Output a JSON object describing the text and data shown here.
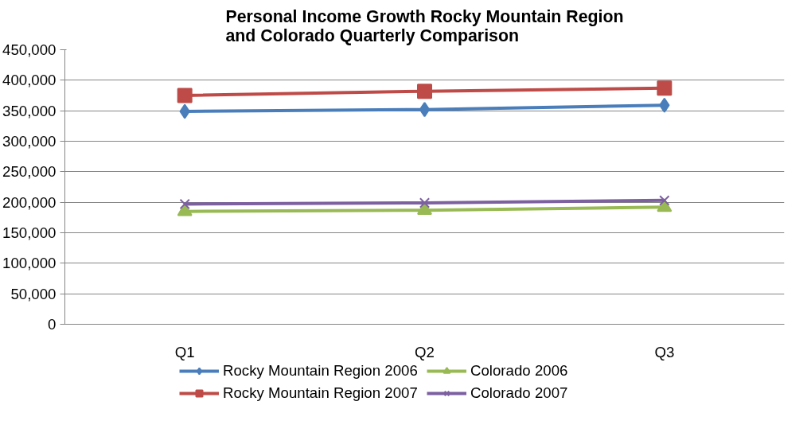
{
  "chart_data": {
    "type": "line",
    "title": "Personal Income Growth Rocky Mountain Region\nand Colorado Quarterly Comparison",
    "categories": [
      "Q1",
      "Q2",
      "Q3"
    ],
    "series": [
      {
        "name": "Rocky Mountain Region 2006",
        "color": "#4a7ebb",
        "marker": "diamond",
        "values": [
          349000,
          352000,
          359000
        ]
      },
      {
        "name": "Rocky Mountain Region 2007",
        "color": "#be4b48",
        "marker": "square",
        "values": [
          375000,
          382000,
          387000
        ]
      },
      {
        "name": "Colorado 2006",
        "color": "#98b954",
        "marker": "triangle",
        "values": [
          185000,
          187000,
          192000
        ]
      },
      {
        "name": "Colorado 2007",
        "color": "#7d60a0",
        "marker": "cross",
        "values": [
          197000,
          199000,
          203000
        ]
      }
    ],
    "ylim": [
      0,
      450000
    ],
    "yticks": [
      0,
      {
        "value": 50000,
        "label": "50,000"
      },
      {
        "value": 100000,
        "label": "100,000"
      },
      {
        "value": 150000,
        "label": "150,000"
      },
      {
        "value": 200000,
        "label": "200,000"
      },
      {
        "value": 250000,
        "label": "250,000"
      },
      {
        "value": 300000,
        "label": "300,000"
      },
      {
        "value": 350000,
        "label": "350,000"
      },
      {
        "value": 400000,
        "label": "400,000"
      },
      {
        "value": 450000,
        "label": "450,000"
      }
    ],
    "grid": "y",
    "legend": "bottom"
  }
}
